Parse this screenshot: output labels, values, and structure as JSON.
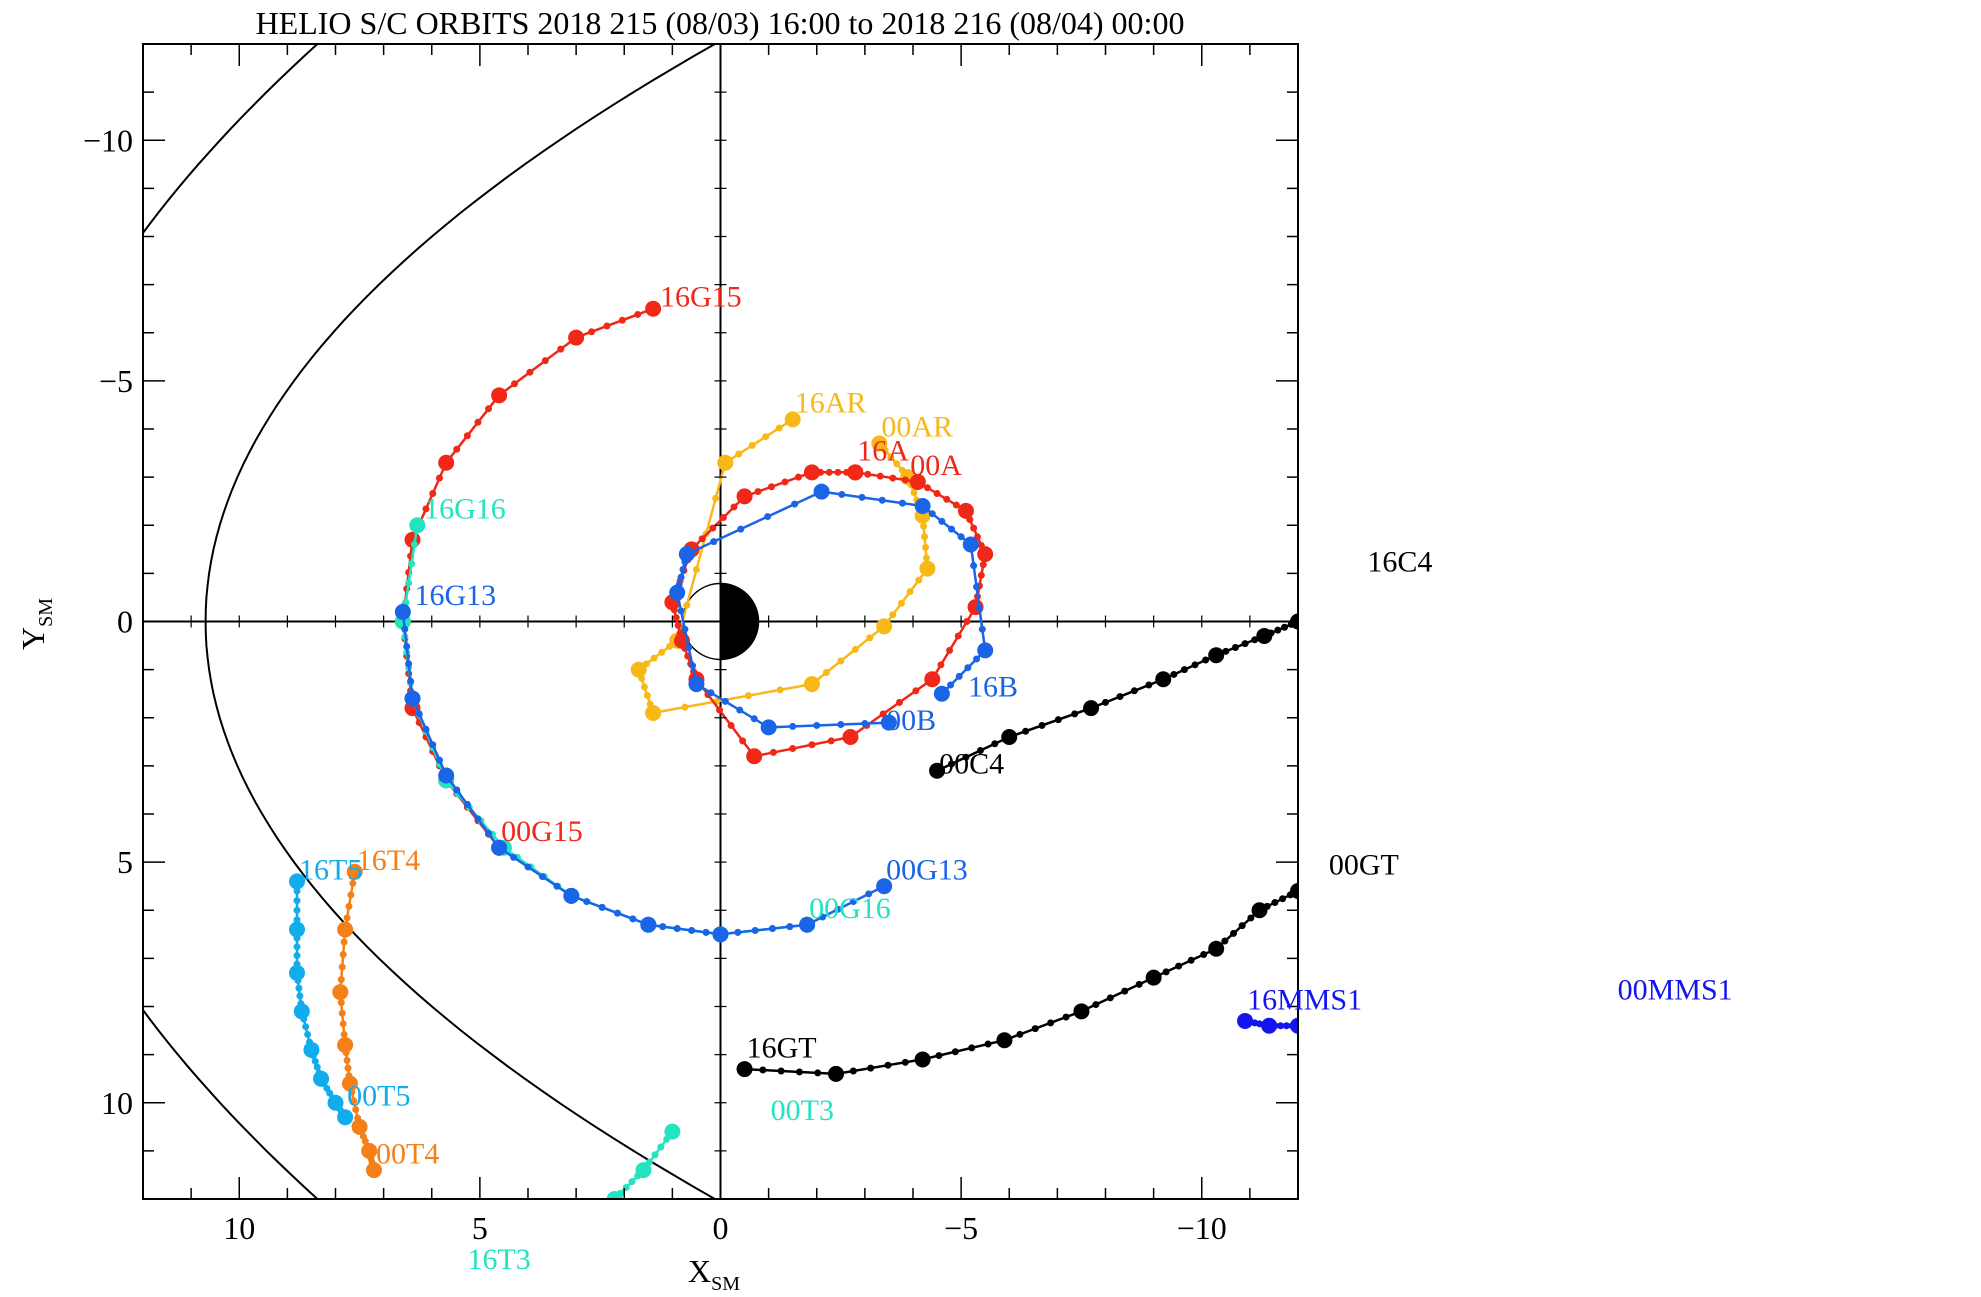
{
  "title": "HELIO S/C ORBITS 2018 215 (08/03) 16:00 to 2018 216 (08/04) 00:00",
  "colors": {
    "frame": "#000000",
    "red": "#f02818",
    "orange_yellow": "#f8b818",
    "blue": "#1a64e8",
    "cyan": "#22e4c0",
    "light_blue": "#10acec",
    "orange": "#f68018",
    "black": "#000000",
    "dark_blue": "#1414ee"
  },
  "chart_data": {
    "type": "scatter",
    "title": "HELIO S/C ORBITS 2018 215 (08/03) 16:00 to 2018 216 (08/04) 00:00",
    "xlabel": "X",
    "xlabel_sub": "SM",
    "ylabel": "Y",
    "ylabel_sub": "SM",
    "xlim": [
      12,
      -12
    ],
    "ylim": [
      -12,
      12
    ],
    "x_ticks": [
      {
        "value": 10,
        "label": "10"
      },
      {
        "value": 5,
        "label": "5"
      },
      {
        "value": 0,
        "label": "0"
      },
      {
        "value": -5,
        "label": "−5"
      },
      {
        "value": -10,
        "label": "−10"
      }
    ],
    "y_ticks": [
      {
        "value": -10,
        "label": "−10"
      },
      {
        "value": -5,
        "label": "−5"
      },
      {
        "value": 0,
        "label": "0"
      },
      {
        "value": 5,
        "label": "5"
      },
      {
        "value": 10,
        "label": "10"
      }
    ],
    "grid": false,
    "series": [
      {
        "key": "g15",
        "color": "red",
        "label_start": "16G15",
        "label_end": "00G15",
        "points": [
          [
            1.4,
            -6.5
          ],
          [
            3.0,
            -5.9
          ],
          [
            4.6,
            -4.7
          ],
          [
            5.7,
            -3.3
          ],
          [
            6.4,
            -1.7
          ],
          [
            6.6,
            0.0
          ],
          [
            6.4,
            1.8
          ],
          [
            5.7,
            3.3
          ],
          [
            4.6,
            4.7
          ]
        ]
      },
      {
        "key": "g16",
        "color": "cyan",
        "label_start": "16G16",
        "label_end": "00G16",
        "points": [
          [
            6.3,
            -2.0
          ],
          [
            6.6,
            0.0
          ],
          [
            6.4,
            1.6
          ],
          [
            5.7,
            3.3
          ],
          [
            4.5,
            4.7
          ],
          [
            3.1,
            5.7
          ],
          [
            1.5,
            6.3
          ],
          [
            0.0,
            6.5
          ],
          [
            -1.8,
            6.3
          ]
        ]
      },
      {
        "key": "g13",
        "color": "blue",
        "label_start": "16G13",
        "label_end": "00G13",
        "points": [
          [
            6.6,
            -0.2
          ],
          [
            6.4,
            1.6
          ],
          [
            5.7,
            3.2
          ],
          [
            4.6,
            4.7
          ],
          [
            3.1,
            5.7
          ],
          [
            1.5,
            6.3
          ],
          [
            0.0,
            6.5
          ],
          [
            -1.8,
            6.3
          ],
          [
            -3.4,
            5.5
          ]
        ]
      },
      {
        "key": "ar",
        "color": "orange_yellow",
        "label_start": "16AR",
        "label_end": "00AR",
        "points": [
          [
            -1.5,
            -4.2
          ],
          [
            -0.1,
            -3.3
          ],
          [
            0.9,
            0.4
          ],
          [
            1.7,
            1.0
          ],
          [
            1.4,
            1.9
          ],
          [
            -1.9,
            1.3
          ],
          [
            -3.4,
            0.1
          ],
          [
            -4.3,
            -1.1
          ],
          [
            -4.2,
            -2.2
          ],
          [
            -3.9,
            -3.0
          ],
          [
            -3.3,
            -3.7
          ]
        ]
      },
      {
        "key": "a",
        "color": "red",
        "label_start": "16A",
        "label_end": "00A",
        "points": [
          [
            -2.8,
            -3.1
          ],
          [
            -4.1,
            -2.9
          ],
          [
            -5.1,
            -2.3
          ],
          [
            -5.5,
            -1.4
          ],
          [
            -5.3,
            -0.3
          ],
          [
            -4.4,
            1.2
          ],
          [
            -2.7,
            2.4
          ],
          [
            -0.7,
            2.8
          ],
          [
            0.5,
            1.2
          ],
          [
            0.8,
            0.4
          ],
          [
            1.0,
            -0.4
          ],
          [
            0.6,
            -1.5
          ],
          [
            -0.5,
            -2.6
          ],
          [
            -1.9,
            -3.1
          ],
          [
            -2.8,
            -3.1
          ]
        ]
      },
      {
        "key": "b",
        "color": "blue",
        "label_start": "16B",
        "label_end": "00B",
        "points": [
          [
            -4.6,
            1.5
          ],
          [
            -5.5,
            0.6
          ],
          [
            -5.2,
            -1.6
          ],
          [
            -4.2,
            -2.4
          ],
          [
            -2.1,
            -2.7
          ],
          [
            0.7,
            -1.4
          ],
          [
            0.9,
            -0.6
          ],
          [
            0.5,
            1.3
          ],
          [
            -1.0,
            2.2
          ],
          [
            -3.5,
            2.1
          ]
        ]
      },
      {
        "key": "c4",
        "color": "black",
        "label_start": "16C4",
        "label_end": "00C4",
        "points": [
          [
            -4.5,
            3.1
          ],
          [
            -6.0,
            2.4
          ],
          [
            -7.7,
            1.8
          ],
          [
            -9.2,
            1.2
          ],
          [
            -10.3,
            0.7
          ],
          [
            -11.3,
            0.3
          ],
          [
            -12.0,
            0.0
          ]
        ]
      },
      {
        "key": "gt",
        "color": "black",
        "label_start": "16GT",
        "label_end": "00GT",
        "points": [
          [
            -0.5,
            9.3
          ],
          [
            -2.4,
            9.4
          ],
          [
            -4.2,
            9.1
          ],
          [
            -5.9,
            8.7
          ],
          [
            -7.5,
            8.1
          ],
          [
            -9.0,
            7.4
          ],
          [
            -10.3,
            6.8
          ],
          [
            -11.2,
            6.0
          ],
          [
            -12.0,
            5.6
          ]
        ]
      },
      {
        "key": "mms1",
        "color": "dark_blue",
        "label_start": "16MMS1",
        "label_end": "00MMS1",
        "points": [
          [
            -10.9,
            8.3
          ],
          [
            -11.4,
            8.4
          ],
          [
            -12.0,
            8.4
          ]
        ]
      },
      {
        "key": "t5",
        "color": "light_blue",
        "label_start": "16T5",
        "label_end": "00T5",
        "points": [
          [
            8.8,
            5.4
          ],
          [
            8.8,
            6.4
          ],
          [
            8.8,
            7.3
          ],
          [
            8.7,
            8.1
          ],
          [
            8.5,
            8.9
          ],
          [
            8.3,
            9.5
          ],
          [
            8.0,
            10.0
          ],
          [
            7.8,
            10.3
          ]
        ]
      },
      {
        "key": "t4",
        "color": "orange",
        "label_start": "16T4",
        "label_end": "00T4",
        "points": [
          [
            7.6,
            5.2
          ],
          [
            7.8,
            6.4
          ],
          [
            7.9,
            7.7
          ],
          [
            7.8,
            8.8
          ],
          [
            7.7,
            9.6
          ],
          [
            7.5,
            10.5
          ],
          [
            7.3,
            11.0
          ],
          [
            7.2,
            11.4
          ]
        ]
      },
      {
        "key": "t3",
        "color": "cyan",
        "label_start": "16T3",
        "label_end": "00T3",
        "points": [
          [
            2.2,
            12.0
          ],
          [
            1.6,
            11.4
          ],
          [
            1.0,
            10.6
          ]
        ]
      }
    ],
    "annotations": [
      {
        "text": "16G15",
        "color": "red",
        "x": 1.3,
        "y": -6.5
      },
      {
        "text": "16AR",
        "color": "orange_yellow",
        "x": -1.5,
        "y": -4.3
      },
      {
        "text": "00AR",
        "color": "orange_yellow",
        "x": -3.3,
        "y": -3.8
      },
      {
        "text": "16A",
        "color": "red",
        "x": -2.8,
        "y": -3.3
      },
      {
        "text": "00A",
        "color": "red",
        "x": -3.9,
        "y": -3.0
      },
      {
        "text": "16G16",
        "color": "cyan",
        "x": 6.2,
        "y": -2.1
      },
      {
        "text": "16G13",
        "color": "blue",
        "x": 6.4,
        "y": -0.3
      },
      {
        "text": "16C4",
        "color": "black",
        "x": -13.4,
        "y": -1.0
      },
      {
        "text": "16B",
        "color": "blue",
        "x": -5.1,
        "y": 1.6
      },
      {
        "text": "00B",
        "color": "blue",
        "x": -3.4,
        "y": 2.3
      },
      {
        "text": "00C4",
        "color": "black",
        "x": -4.5,
        "y": 3.2
      },
      {
        "text": "00G15",
        "color": "red",
        "x": 4.6,
        "y": 4.6
      },
      {
        "text": "00GT",
        "color": "black",
        "x": -12.6,
        "y": 5.3
      },
      {
        "text": "16T5",
        "color": "light_blue",
        "x": 8.8,
        "y": 5.4
      },
      {
        "text": "16T4",
        "color": "orange",
        "x": 7.6,
        "y": 5.2
      },
      {
        "text": "00G13",
        "color": "blue",
        "x": -3.4,
        "y": 5.4
      },
      {
        "text": "00G16",
        "color": "cyan",
        "x": -1.8,
        "y": 6.2
      },
      {
        "text": "16MMS1",
        "color": "dark_blue",
        "x": -10.9,
        "y": 8.1
      },
      {
        "text": "00MMS1",
        "color": "dark_blue",
        "x": -18.6,
        "y": 7.9
      },
      {
        "text": "16GT",
        "color": "black",
        "x": -0.5,
        "y": 9.1
      },
      {
        "text": "00T5",
        "color": "light_blue",
        "x": 7.8,
        "y": 10.1
      },
      {
        "text": "00T3",
        "color": "cyan",
        "x": -1.0,
        "y": 10.4
      },
      {
        "text": "00T4",
        "color": "orange",
        "x": 7.2,
        "y": 11.3
      },
      {
        "text": "16T3",
        "color": "cyan",
        "x": 5.3,
        "y": 13.5
      }
    ]
  }
}
